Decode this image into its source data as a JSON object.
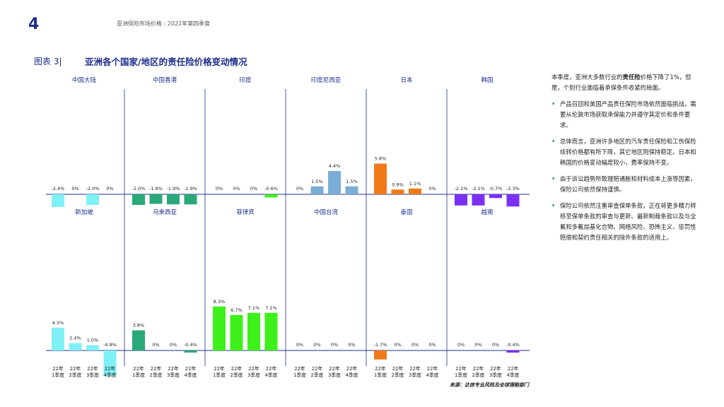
{
  "header": {
    "page_number": "4",
    "running_title": "亚洲保险市场价格 : 2022年第四季度"
  },
  "figure": {
    "label": "图表 3|",
    "title": "亚洲各个国家/地区的责任险价格变动情况"
  },
  "colors": {
    "teal": "#7ff0f5",
    "green": "#2aa87a",
    "lime": "#3ef01a",
    "blue": "#7aaed6",
    "orange": "#f07a1a",
    "purple": "#7b2ff2",
    "axis": "#1e2d8c",
    "title": "#1e2d8c"
  },
  "chart_data": {
    "type": "bar",
    "categories": [
      "22年\n1季度",
      "22年\n2季度",
      "22年\n3季度",
      "22年\n4季度"
    ],
    "unit": "%",
    "panels": [
      {
        "name": "中国大陆",
        "row": 0,
        "color_key": "teal",
        "values": [
          -2.4,
          0,
          -2.0,
          0
        ],
        "labels": [
          "-2.4%",
          "0%",
          "-2.0%",
          "0%"
        ]
      },
      {
        "name": "中国香港",
        "row": 0,
        "color_key": "green",
        "values": [
          -2.0,
          -1.8,
          -1.9,
          -1.9
        ],
        "labels": [
          "-2.0%",
          "-1.8%",
          "-1.9%",
          "-1.9%"
        ]
      },
      {
        "name": "印度",
        "row": 0,
        "color_key": "lime",
        "values": [
          0,
          0,
          0,
          -0.6
        ],
        "labels": [
          "0%",
          "0%",
          "0%",
          "-0.6%"
        ]
      },
      {
        "name": "印度尼西亚",
        "row": 0,
        "color_key": "blue",
        "values": [
          0,
          1.5,
          4.4,
          1.5
        ],
        "labels": [
          "0%",
          "1.5%",
          "4.4%",
          "1.5%"
        ]
      },
      {
        "name": "日本",
        "row": 0,
        "color_key": "orange",
        "values": [
          5.8,
          0.9,
          1.1,
          0
        ],
        "labels": [
          "5.8%",
          "0.9%",
          "1.1%",
          "0%"
        ]
      },
      {
        "name": "韩国",
        "row": 0,
        "color_key": "purple",
        "values": [
          -2.1,
          -2.1,
          -0.7,
          -2.3
        ],
        "labels": [
          "-2.1%",
          "-2.1%",
          "-0.7%",
          "-2.3%"
        ]
      },
      {
        "name": "新加坡",
        "row": 1,
        "color_key": "teal",
        "values": [
          4.3,
          1.4,
          1.0,
          -4.8
        ],
        "labels": [
          "4.3%",
          "1.4%",
          "1.0%",
          "-4.8%"
        ]
      },
      {
        "name": "马来西亚",
        "row": 1,
        "color_key": "green",
        "values": [
          3.8,
          0,
          0,
          -0.4
        ],
        "labels": [
          "3.8%",
          "0%",
          "0%",
          "-0.4%"
        ]
      },
      {
        "name": "菲律宾",
        "row": 1,
        "color_key": "lime",
        "values": [
          8.3,
          6.7,
          7.1,
          7.1
        ],
        "labels": [
          "8.3%",
          "6.7%",
          "7.1%",
          "7.1%"
        ]
      },
      {
        "name": "中国台湾",
        "row": 1,
        "color_key": "blue",
        "values": [
          0,
          0,
          0,
          0
        ],
        "labels": [
          "0%",
          "0%",
          "0%",
          "0%"
        ]
      },
      {
        "name": "泰国",
        "row": 1,
        "color_key": "orange",
        "values": [
          -1.7,
          0,
          0,
          0
        ],
        "labels": [
          "-1.7%",
          "0%",
          "0%",
          "0%"
        ]
      },
      {
        "name": "越南",
        "row": 1,
        "color_key": "purple",
        "values": [
          0,
          0,
          0,
          -0.4
        ],
        "labels": [
          "0%",
          "0%",
          "0%",
          "-0.4%"
        ]
      }
    ]
  },
  "sidebar": {
    "intro_prefix": "本季度，亚洲大多数行业的",
    "intro_bold": "责任险",
    "intro_suffix": "价格下降了1%，但是，个别行业面临着承保条件收紧的局面。",
    "bullets": [
      "产品召回和美国产品责任保险市场依然面临挑战，需要从伦敦市场获取承保能力并遵守其定价和条件要求。",
      "总体而言，亚洲许多地区的汽车责任保险和工伤保险续转价格都有所下降，其它地区则保持稳定。日本和韩国的价格变动幅度较小，费率保持不变。",
      "由于诉讼趋势所致理赔通胀和材料成本上涨等因素，保险公司依然保持谨慎。",
      "保险公司依然注重审查保单条款，正在将更多精力转移至保单条款的审查与更新、最新制裁条款以及与全氟和多氟烷基化合物、网络风险、恐怖主义、惩罚性赔偿和契约责任相关的除外条款的适用上。"
    ],
    "bullet_glyph": "•"
  },
  "source": "来源：达信专业风险及全球理赔部门"
}
